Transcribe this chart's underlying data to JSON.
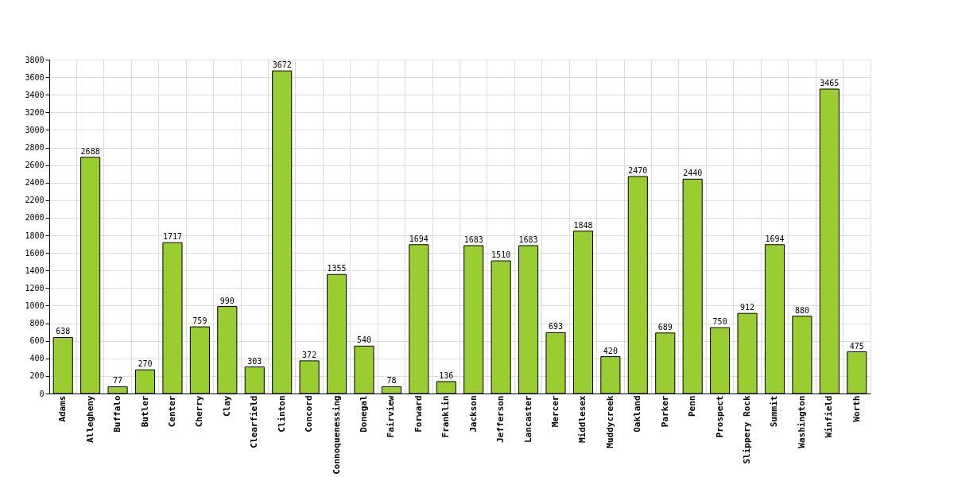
{
  "chart_data": {
    "type": "bar",
    "categories": [
      "Adams",
      "Allegheny",
      "Buffalo",
      "Butler",
      "Center",
      "Cherry",
      "Clay",
      "Clearfield",
      "Clinton",
      "Concord",
      "Connoquenessing",
      "Donegal",
      "Fairview",
      "Forward",
      "Franklin",
      "Jackson",
      "Jefferson",
      "Lancaster",
      "Mercer",
      "Middlesex",
      "Muddycreek",
      "Oakland",
      "Parker",
      "Penn",
      "Prospect",
      "Slippery Rock",
      "Summit",
      "Washington",
      "Winfield",
      "Worth"
    ],
    "values": [
      638,
      2688,
      77,
      270,
      1717,
      759,
      990,
      303,
      3672,
      372,
      1355,
      540,
      78,
      1694,
      136,
      1683,
      1510,
      1683,
      693,
      1848,
      420,
      2470,
      689,
      2440,
      750,
      912,
      1694,
      880,
      3465,
      475
    ],
    "color": "#9acd32",
    "ylim": [
      0,
      3800
    ],
    "yticks": [
      0,
      200,
      400,
      600,
      800,
      1000,
      1200,
      1400,
      1600,
      1800,
      2000,
      2200,
      2400,
      2600,
      2800,
      3000,
      3200,
      3400,
      3600,
      3800
    ],
    "grid": true,
    "data_labels": true
  }
}
